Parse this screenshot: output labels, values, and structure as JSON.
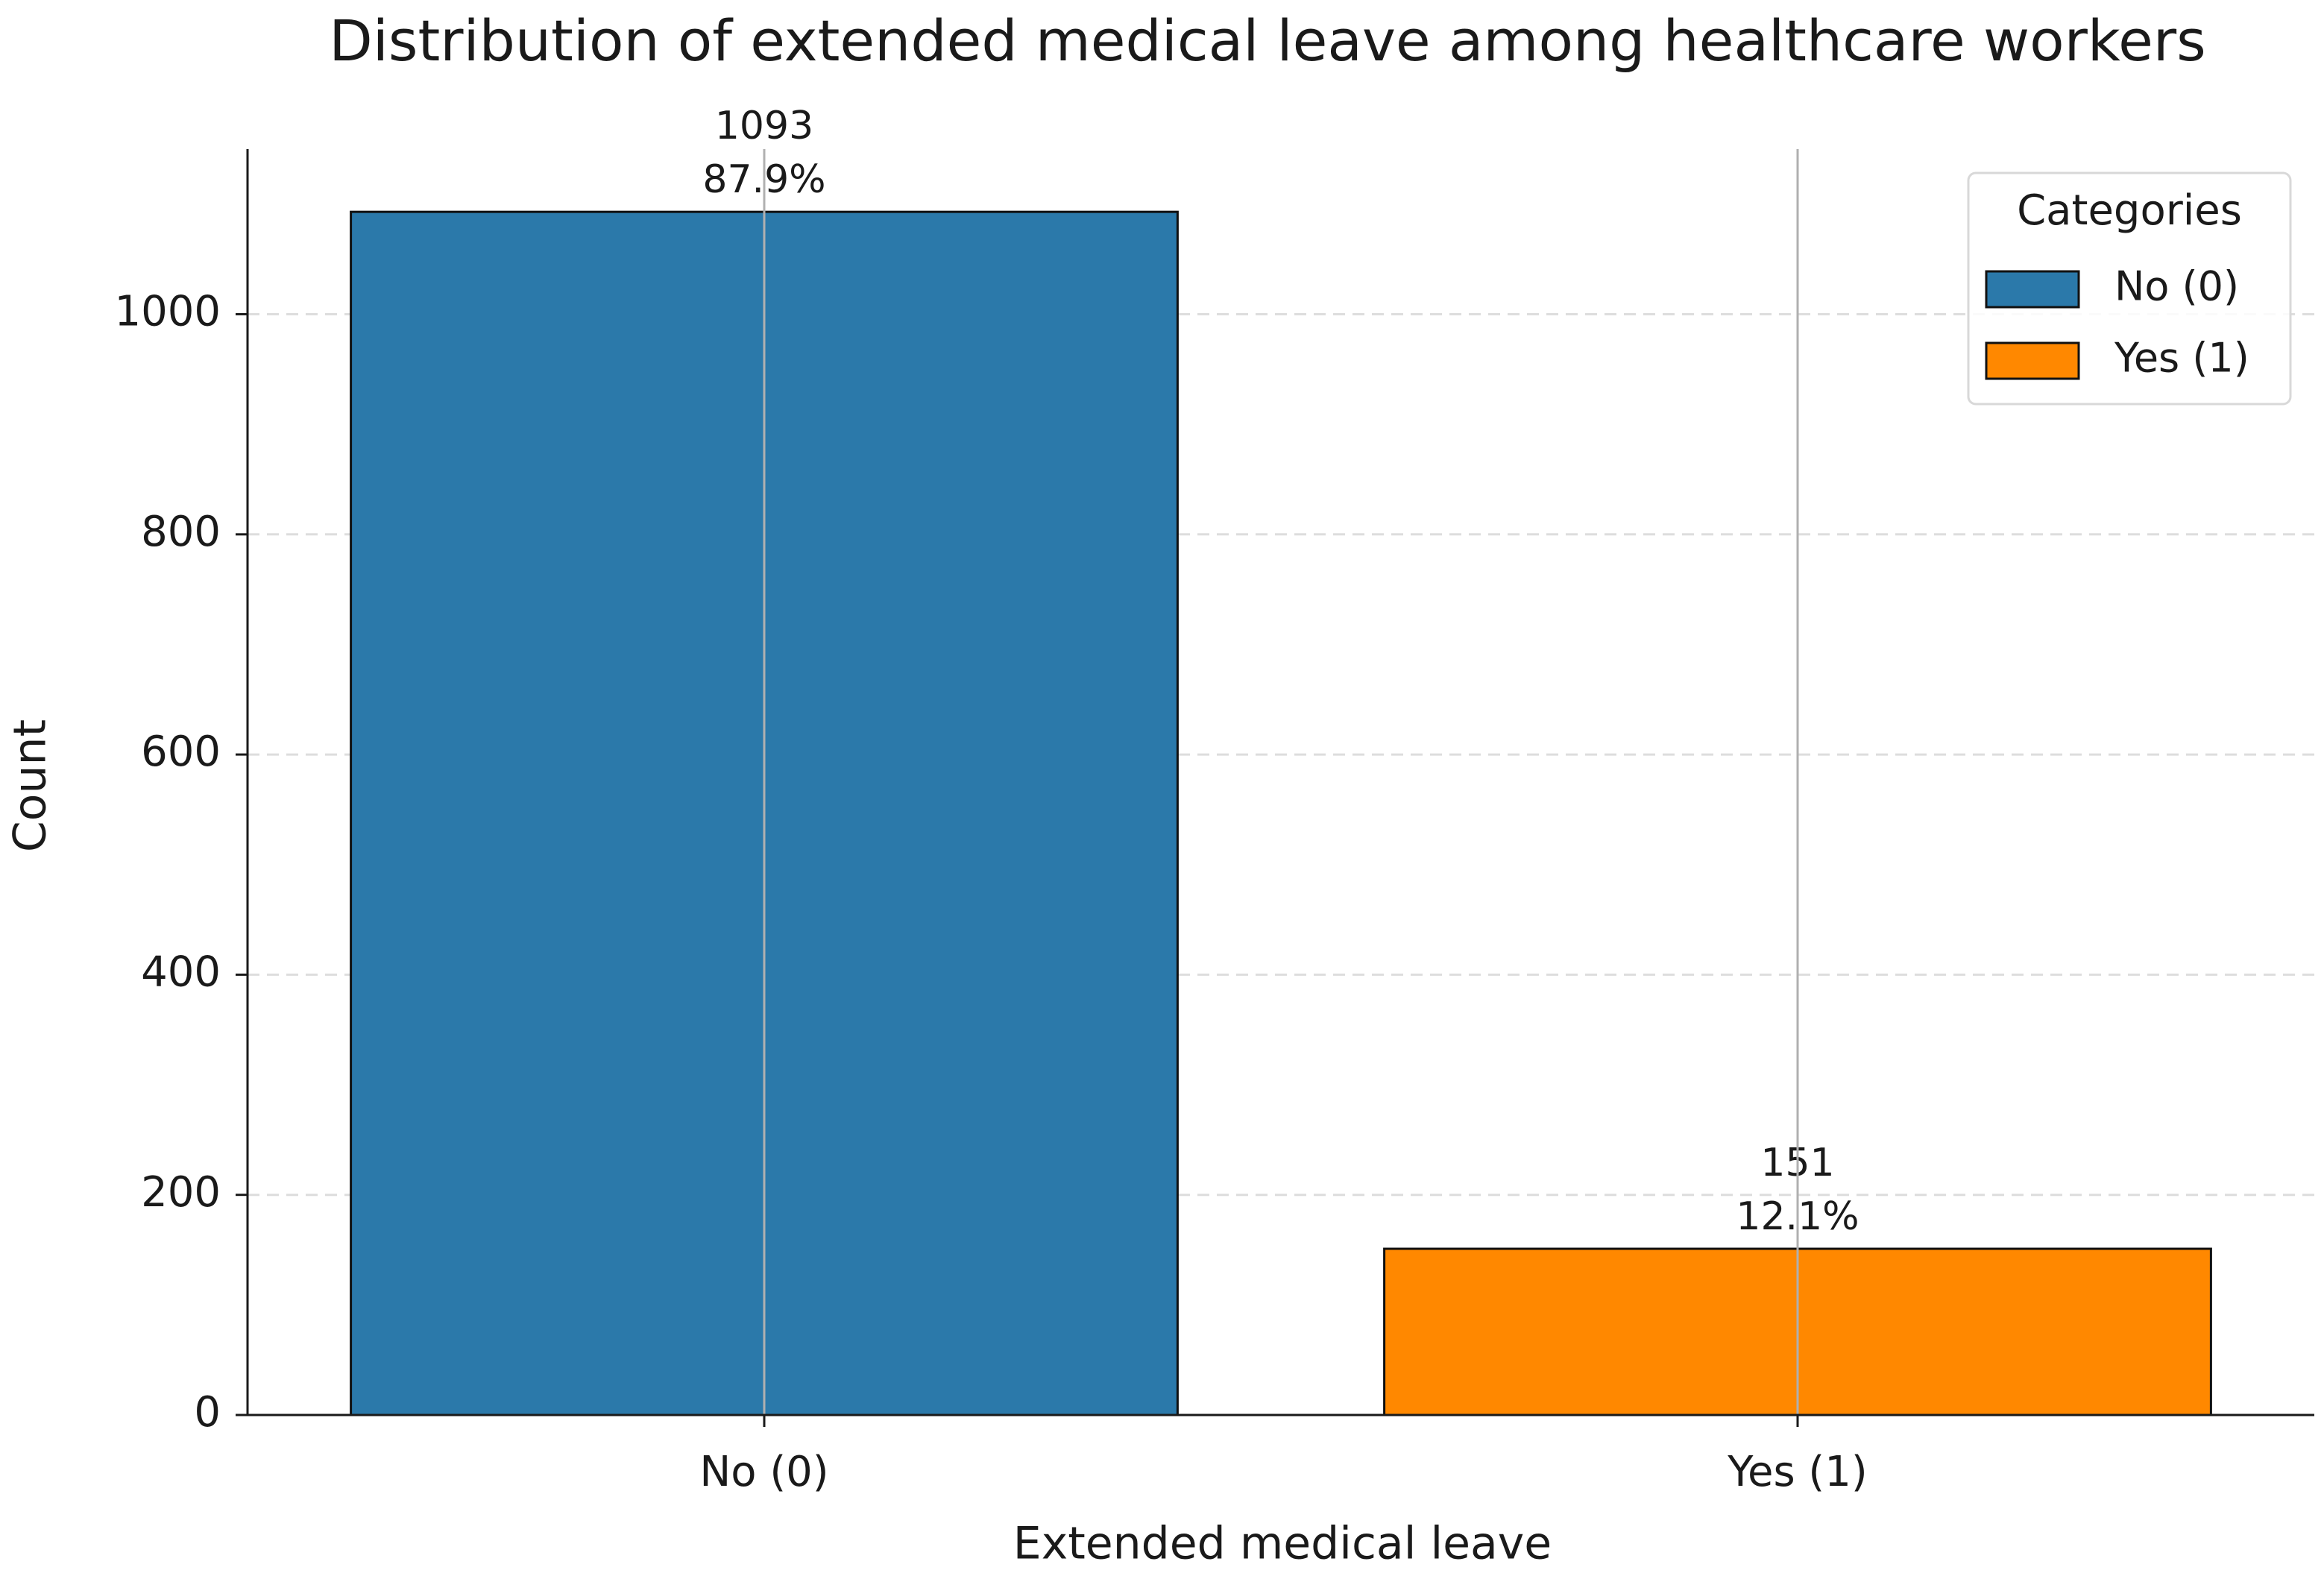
{
  "chart_data": {
    "type": "bar",
    "title": "Distribution of extended medical leave among healthcare workers",
    "x_label": "Extended medical leave",
    "y_label": "Count",
    "categories": [
      "No (0)",
      "Yes (1)"
    ],
    "values": [
      1093,
      151
    ],
    "share_labels": [
      "87.9%",
      "12.1%"
    ],
    "colors": [
      "#2b79aa",
      "#ff8800"
    ],
    "ylim": [
      0,
      1150
    ],
    "yticks": [
      0,
      200,
      400,
      600,
      800,
      1000
    ],
    "grid": true,
    "legend": {
      "title": "Categories",
      "position": "upper right"
    }
  }
}
